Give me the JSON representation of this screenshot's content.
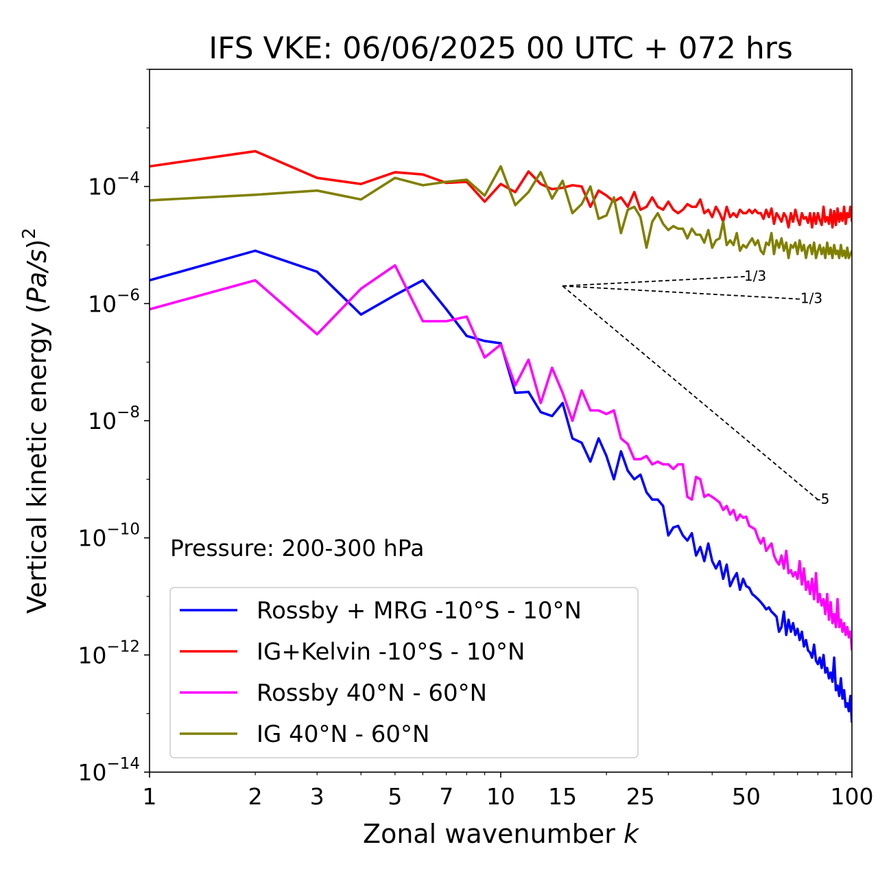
{
  "chart_data": {
    "type": "line",
    "title": "IFS VKE: 06/06/2025 00 UTC + 072 hrs",
    "xlabel_text": "Zonal wavenumber",
    "xlabel_var": "k",
    "ylabel_text": "Vertical kinetic energy (",
    "ylabel_var": "Pa/s",
    "ylabel_close": ")",
    "ylabel_sup": "2",
    "x_scale": "log",
    "y_scale": "log",
    "xlim": [
      1,
      100
    ],
    "ylim": [
      1e-14,
      0.01
    ],
    "grid": false,
    "legend_position": "lower-left",
    "annotation": "Pressure: 200-300 hPa",
    "x_ticks": [
      {
        "v": 1,
        "label": "1"
      },
      {
        "v": 2,
        "label": "2"
      },
      {
        "v": 3,
        "label": "3"
      },
      {
        "v": 5,
        "label": "5"
      },
      {
        "v": 7,
        "label": "7"
      },
      {
        "v": 10,
        "label": "10"
      },
      {
        "v": 15,
        "label": "15"
      },
      {
        "v": 25,
        "label": "25"
      },
      {
        "v": 50,
        "label": "50"
      },
      {
        "v": 100,
        "label": "100"
      }
    ],
    "y_ticks": [
      {
        "v": 0.0001,
        "base": "10",
        "exp": "−4"
      },
      {
        "v": 1e-06,
        "base": "10",
        "exp": "−6"
      },
      {
        "v": 1e-08,
        "base": "10",
        "exp": "−8"
      },
      {
        "v": 1e-10,
        "base": "10",
        "exp": "−10"
      },
      {
        "v": 1e-12,
        "base": "10",
        "exp": "−12"
      },
      {
        "v": 1e-14,
        "base": "10",
        "exp": "−14"
      }
    ],
    "reference_slopes": [
      {
        "label": "1/3",
        "x": [
          15,
          50
        ],
        "y": [
          2e-06,
          2.9e-06
        ]
      },
      {
        "label": "-1/3",
        "x": [
          15,
          70
        ],
        "y": [
          2e-06,
          1.2e-06
        ]
      },
      {
        "label": "-5",
        "x": [
          15,
          80
        ],
        "y": [
          2e-06,
          4.5e-10
        ]
      }
    ],
    "series": [
      {
        "name": "Rossby + MRG -10°S - 10°N",
        "color": "#0000ff",
        "x": [
          1,
          2,
          3,
          4,
          5,
          6,
          7,
          8,
          9,
          10,
          11,
          12,
          13,
          14,
          15,
          16,
          17,
          18,
          19,
          20,
          21,
          22,
          23,
          24,
          25,
          26,
          27,
          28,
          29,
          30,
          31,
          32,
          33,
          34,
          35,
          36,
          37,
          38,
          39,
          40,
          41,
          42,
          43,
          44,
          45,
          46,
          47,
          48,
          49,
          50,
          51,
          52,
          53,
          54,
          55,
          56,
          57,
          58,
          59,
          60,
          61,
          62,
          63,
          64,
          65,
          66,
          67,
          68,
          69,
          70,
          71,
          72,
          73,
          74,
          75,
          76,
          77,
          78,
          79,
          80,
          81,
          82,
          83,
          84,
          85,
          86,
          87,
          88,
          89,
          90,
          91,
          92,
          93,
          94,
          95,
          96,
          97,
          98,
          99,
          100
        ],
        "y": [
          2.5e-06,
          8e-06,
          3.5e-06,
          6.5e-07,
          1.4e-06,
          2.5e-06,
          8e-07,
          2.8e-07,
          2.3e-07,
          2.1e-07,
          3e-08,
          3.1e-08,
          1.4e-08,
          1.2e-08,
          2e-08,
          5e-09,
          4.2e-09,
          2e-09,
          5e-09,
          2.5e-09,
          1e-09,
          3e-09,
          1.4e-09,
          1e-09,
          1.2e-09,
          6e-10,
          4.5e-10,
          4.5e-10,
          3.5e-10,
          1.1e-10,
          1.5e-10,
          1.6e-10,
          1.1e-10,
          9e-11,
          1.2e-10,
          5e-11,
          7e-11,
          4e-11,
          8e-11,
          4e-11,
          3e-11,
          4e-11,
          2e-11,
          3.5e-11,
          1.5e-11,
          2e-11,
          2.5e-11,
          1.3e-11,
          2e-11,
          1.5e-11,
          1.4e-11,
          1.1e-11,
          1e-11,
          9e-12,
          8e-12,
          7e-12,
          6e-12,
          6.5e-12,
          5.5e-12,
          5e-12,
          4.5e-12,
          2.5e-12,
          3e-12,
          5.5e-12,
          2.2e-12,
          4e-12,
          2.5e-12,
          3.5e-12,
          2.2e-12,
          2.8e-12,
          1.8e-12,
          2.5e-12,
          1.4e-12,
          1.8e-12,
          1.2e-12,
          1.1e-12,
          9e-13,
          1.5e-12,
          8e-13,
          7e-13,
          9e-13,
          6e-13,
          1e-12,
          5e-13,
          6e-13,
          4e-13,
          5e-13,
          3.5e-13,
          9e-13,
          2.5e-13,
          3e-13,
          2e-13,
          4e-13,
          1.8e-13,
          2.5e-13,
          1.3e-13,
          1.5e-13,
          1.1e-13,
          2e-13,
          7e-14
        ]
      },
      {
        "name": "IG+Kelvin -10°S - 10°N",
        "color": "#ff0000",
        "x": [
          1,
          2,
          3,
          4,
          5,
          6,
          7,
          8,
          9,
          10,
          11,
          12,
          13,
          14,
          15,
          16,
          17,
          18,
          19,
          20,
          21,
          22,
          23,
          24,
          25,
          26,
          27,
          28,
          29,
          30,
          31,
          32,
          33,
          34,
          35,
          36,
          37,
          38,
          39,
          40,
          41,
          42,
          43,
          44,
          45,
          46,
          47,
          48,
          49,
          50,
          51,
          52,
          53,
          54,
          55,
          56,
          57,
          58,
          59,
          60,
          61,
          62,
          63,
          64,
          65,
          66,
          67,
          68,
          69,
          70,
          71,
          72,
          73,
          74,
          75,
          76,
          77,
          78,
          79,
          80,
          81,
          82,
          83,
          84,
          85,
          86,
          87,
          88,
          89,
          90,
          91,
          92,
          93,
          94,
          95,
          96,
          97,
          98,
          99,
          100
        ],
        "y": [
          0.00022,
          0.0004,
          0.00014,
          0.00011,
          0.000175,
          0.00016,
          0.000115,
          0.00012,
          5.5e-05,
          0.00011,
          8e-05,
          0.00018,
          0.00011,
          9e-05,
          9.5e-05,
          0.000105,
          0.0001,
          4.5e-05,
          8.5e-05,
          7e-05,
          5.5e-05,
          6.5e-05,
          4.5e-05,
          8e-05,
          4e-05,
          4.5e-05,
          6.5e-05,
          4.5e-05,
          4e-05,
          5.5e-05,
          4e-05,
          3.5e-05,
          4e-05,
          5e-05,
          4.5e-05,
          4.5e-05,
          6e-05,
          3.5e-05,
          4e-05,
          3e-05,
          4.5e-05,
          3.5e-05,
          2.5e-05,
          4.5e-05,
          3e-05,
          3.5e-05,
          3e-05,
          4e-05,
          3.5e-05,
          3.5e-05,
          4e-05,
          3.5e-05,
          4e-05,
          3.5e-05,
          3.5e-05,
          2.8e-05,
          4e-05,
          3e-05,
          4.2e-05,
          2.3e-05,
          3.5e-05,
          3e-05,
          2.5e-05,
          3.5e-05,
          3e-05,
          2e-05,
          3.5e-05,
          2.5e-05,
          4e-05,
          2.8e-05,
          2.2e-05,
          3.5e-05,
          2.8e-05,
          3e-05,
          2.4e-05,
          3.5e-05,
          2e-05,
          3.5e-05,
          2.3e-05,
          3.5e-05,
          2.7e-05,
          2.2e-05,
          4.5e-05,
          2.5e-05,
          3e-05,
          2.3e-05,
          4e-05,
          2e-05,
          3.8e-05,
          2.2e-05,
          4.2e-05,
          2.5e-05,
          3.5e-05,
          2.6e-05,
          4.5e-05,
          2.3e-05,
          3.5e-05,
          3e-05,
          4.5e-05,
          2.5e-05
        ]
      },
      {
        "name": "Rossby 40°N - 60°N",
        "color": "#ff00ff",
        "x": [
          1,
          2,
          3,
          4,
          5,
          6,
          7,
          8,
          9,
          10,
          11,
          12,
          13,
          14,
          15,
          16,
          17,
          18,
          19,
          20,
          21,
          22,
          23,
          24,
          25,
          26,
          27,
          28,
          29,
          30,
          31,
          32,
          33,
          34,
          35,
          36,
          37,
          38,
          39,
          40,
          41,
          42,
          43,
          44,
          45,
          46,
          47,
          48,
          49,
          50,
          51,
          52,
          53,
          54,
          55,
          56,
          57,
          58,
          59,
          60,
          61,
          62,
          63,
          64,
          65,
          66,
          67,
          68,
          69,
          70,
          71,
          72,
          73,
          74,
          75,
          76,
          77,
          78,
          79,
          80,
          81,
          82,
          83,
          84,
          85,
          86,
          87,
          88,
          89,
          90,
          91,
          92,
          93,
          94,
          95,
          96,
          97,
          98,
          99,
          100
        ],
        "y": [
          8e-07,
          2.5e-06,
          3e-07,
          1.8e-06,
          4.5e-06,
          5e-07,
          5e-07,
          6e-07,
          1.2e-07,
          2e-07,
          4e-08,
          1.1e-07,
          2e-08,
          8e-08,
          3e-08,
          1e-08,
          3.3e-08,
          1.5e-08,
          1.5e-08,
          1.3e-08,
          1.5e-08,
          5e-09,
          4e-09,
          2.2e-09,
          2.2e-09,
          2.5e-09,
          1.8e-09,
          2e-09,
          1.8e-09,
          1.8e-09,
          1.5e-09,
          1.8e-09,
          1.8e-09,
          5e-10,
          4.5e-10,
          1.1e-09,
          1e-09,
          5e-10,
          5.5e-10,
          5e-10,
          4.5e-10,
          4e-10,
          3e-10,
          3.5e-10,
          2.5e-10,
          3e-10,
          2e-10,
          2.5e-10,
          2.2e-10,
          2.3e-10,
          1.6e-10,
          1.5e-10,
          1.4e-10,
          1e-10,
          8e-11,
          1e-10,
          6e-11,
          7e-11,
          8e-11,
          5e-11,
          4e-11,
          3.5e-11,
          5e-11,
          3e-11,
          6e-11,
          2.5e-11,
          2.8e-11,
          2.2e-11,
          2.6e-11,
          2e-11,
          4e-11,
          1.6e-11,
          3e-11,
          1.3e-11,
          1.8e-11,
          1.1e-11,
          2e-11,
          9e-12,
          2.5e-11,
          8e-12,
          1.1e-11,
          7e-12,
          9e-12,
          5e-12,
          1.1e-11,
          4e-12,
          8e-12,
          3.5e-12,
          5e-12,
          3e-12,
          9e-12,
          3e-12,
          4e-12,
          2.5e-12,
          3.5e-12,
          2.2e-12,
          3e-12,
          2e-12,
          2.5e-12,
          1.2e-12
        ]
      },
      {
        "name": "IG 40°N - 60°N",
        "color": "#808000",
        "x": [
          1,
          2,
          3,
          4,
          5,
          6,
          7,
          8,
          9,
          10,
          11,
          12,
          13,
          14,
          15,
          16,
          17,
          18,
          19,
          20,
          21,
          22,
          23,
          24,
          25,
          26,
          27,
          28,
          29,
          30,
          31,
          32,
          33,
          34,
          35,
          36,
          37,
          38,
          39,
          40,
          41,
          42,
          43,
          44,
          45,
          46,
          47,
          48,
          49,
          50,
          51,
          52,
          53,
          54,
          55,
          56,
          57,
          58,
          59,
          60,
          61,
          62,
          63,
          64,
          65,
          66,
          67,
          68,
          69,
          70,
          71,
          72,
          73,
          74,
          75,
          76,
          77,
          78,
          79,
          80,
          81,
          82,
          83,
          84,
          85,
          86,
          87,
          88,
          89,
          90,
          91,
          92,
          93,
          94,
          95,
          96,
          97,
          98,
          99,
          100
        ],
        "y": [
          5.8e-05,
          7.2e-05,
          8.5e-05,
          6e-05,
          0.00014,
          0.000105,
          0.00012,
          0.00013,
          7e-05,
          0.00022,
          4.8e-05,
          8e-05,
          0.000175,
          6.2e-05,
          0.000125,
          3.5e-05,
          5e-05,
          0.0001,
          2.8e-05,
          3.2e-05,
          6.5e-05,
          1.6e-05,
          4e-05,
          4.5e-05,
          3e-05,
          9e-06,
          2.5e-05,
          3.5e-05,
          2.3e-05,
          1.8e-05,
          2.1e-05,
          1.9e-05,
          1.9e-05,
          1.3e-05,
          1.9e-05,
          1.5e-05,
          1.5e-05,
          1.1e-05,
          1.8e-05,
          9e-06,
          1.2e-05,
          1.3e-05,
          2.5e-05,
          1e-05,
          1.2e-05,
          1e-05,
          1.6e-05,
          8e-06,
          1e-05,
          9e-06,
          1.1e-05,
          1.3e-05,
          1e-05,
          1.2e-05,
          8e-06,
          7e-06,
          1.1e-05,
          1e-05,
          1.6e-05,
          7e-06,
          1.2e-05,
          9e-06,
          1.3e-05,
          8e-06,
          1.1e-05,
          6e-06,
          1e-05,
          9e-06,
          1.1e-05,
          7e-06,
          1.2e-05,
          8e-06,
          1e-05,
          6e-06,
          9e-06,
          1e-05,
          7e-06,
          1.1e-05,
          6e-06,
          8e-06,
          1e-05,
          7e-06,
          9e-06,
          6e-06,
          1.1e-05,
          7e-06,
          9e-06,
          6e-06,
          1e-05,
          7e-06,
          8e-06,
          6e-06,
          1e-05,
          6.5e-06,
          8e-06,
          6e-06,
          9e-06,
          6e-06,
          7e-06,
          8e-06
        ]
      }
    ]
  }
}
